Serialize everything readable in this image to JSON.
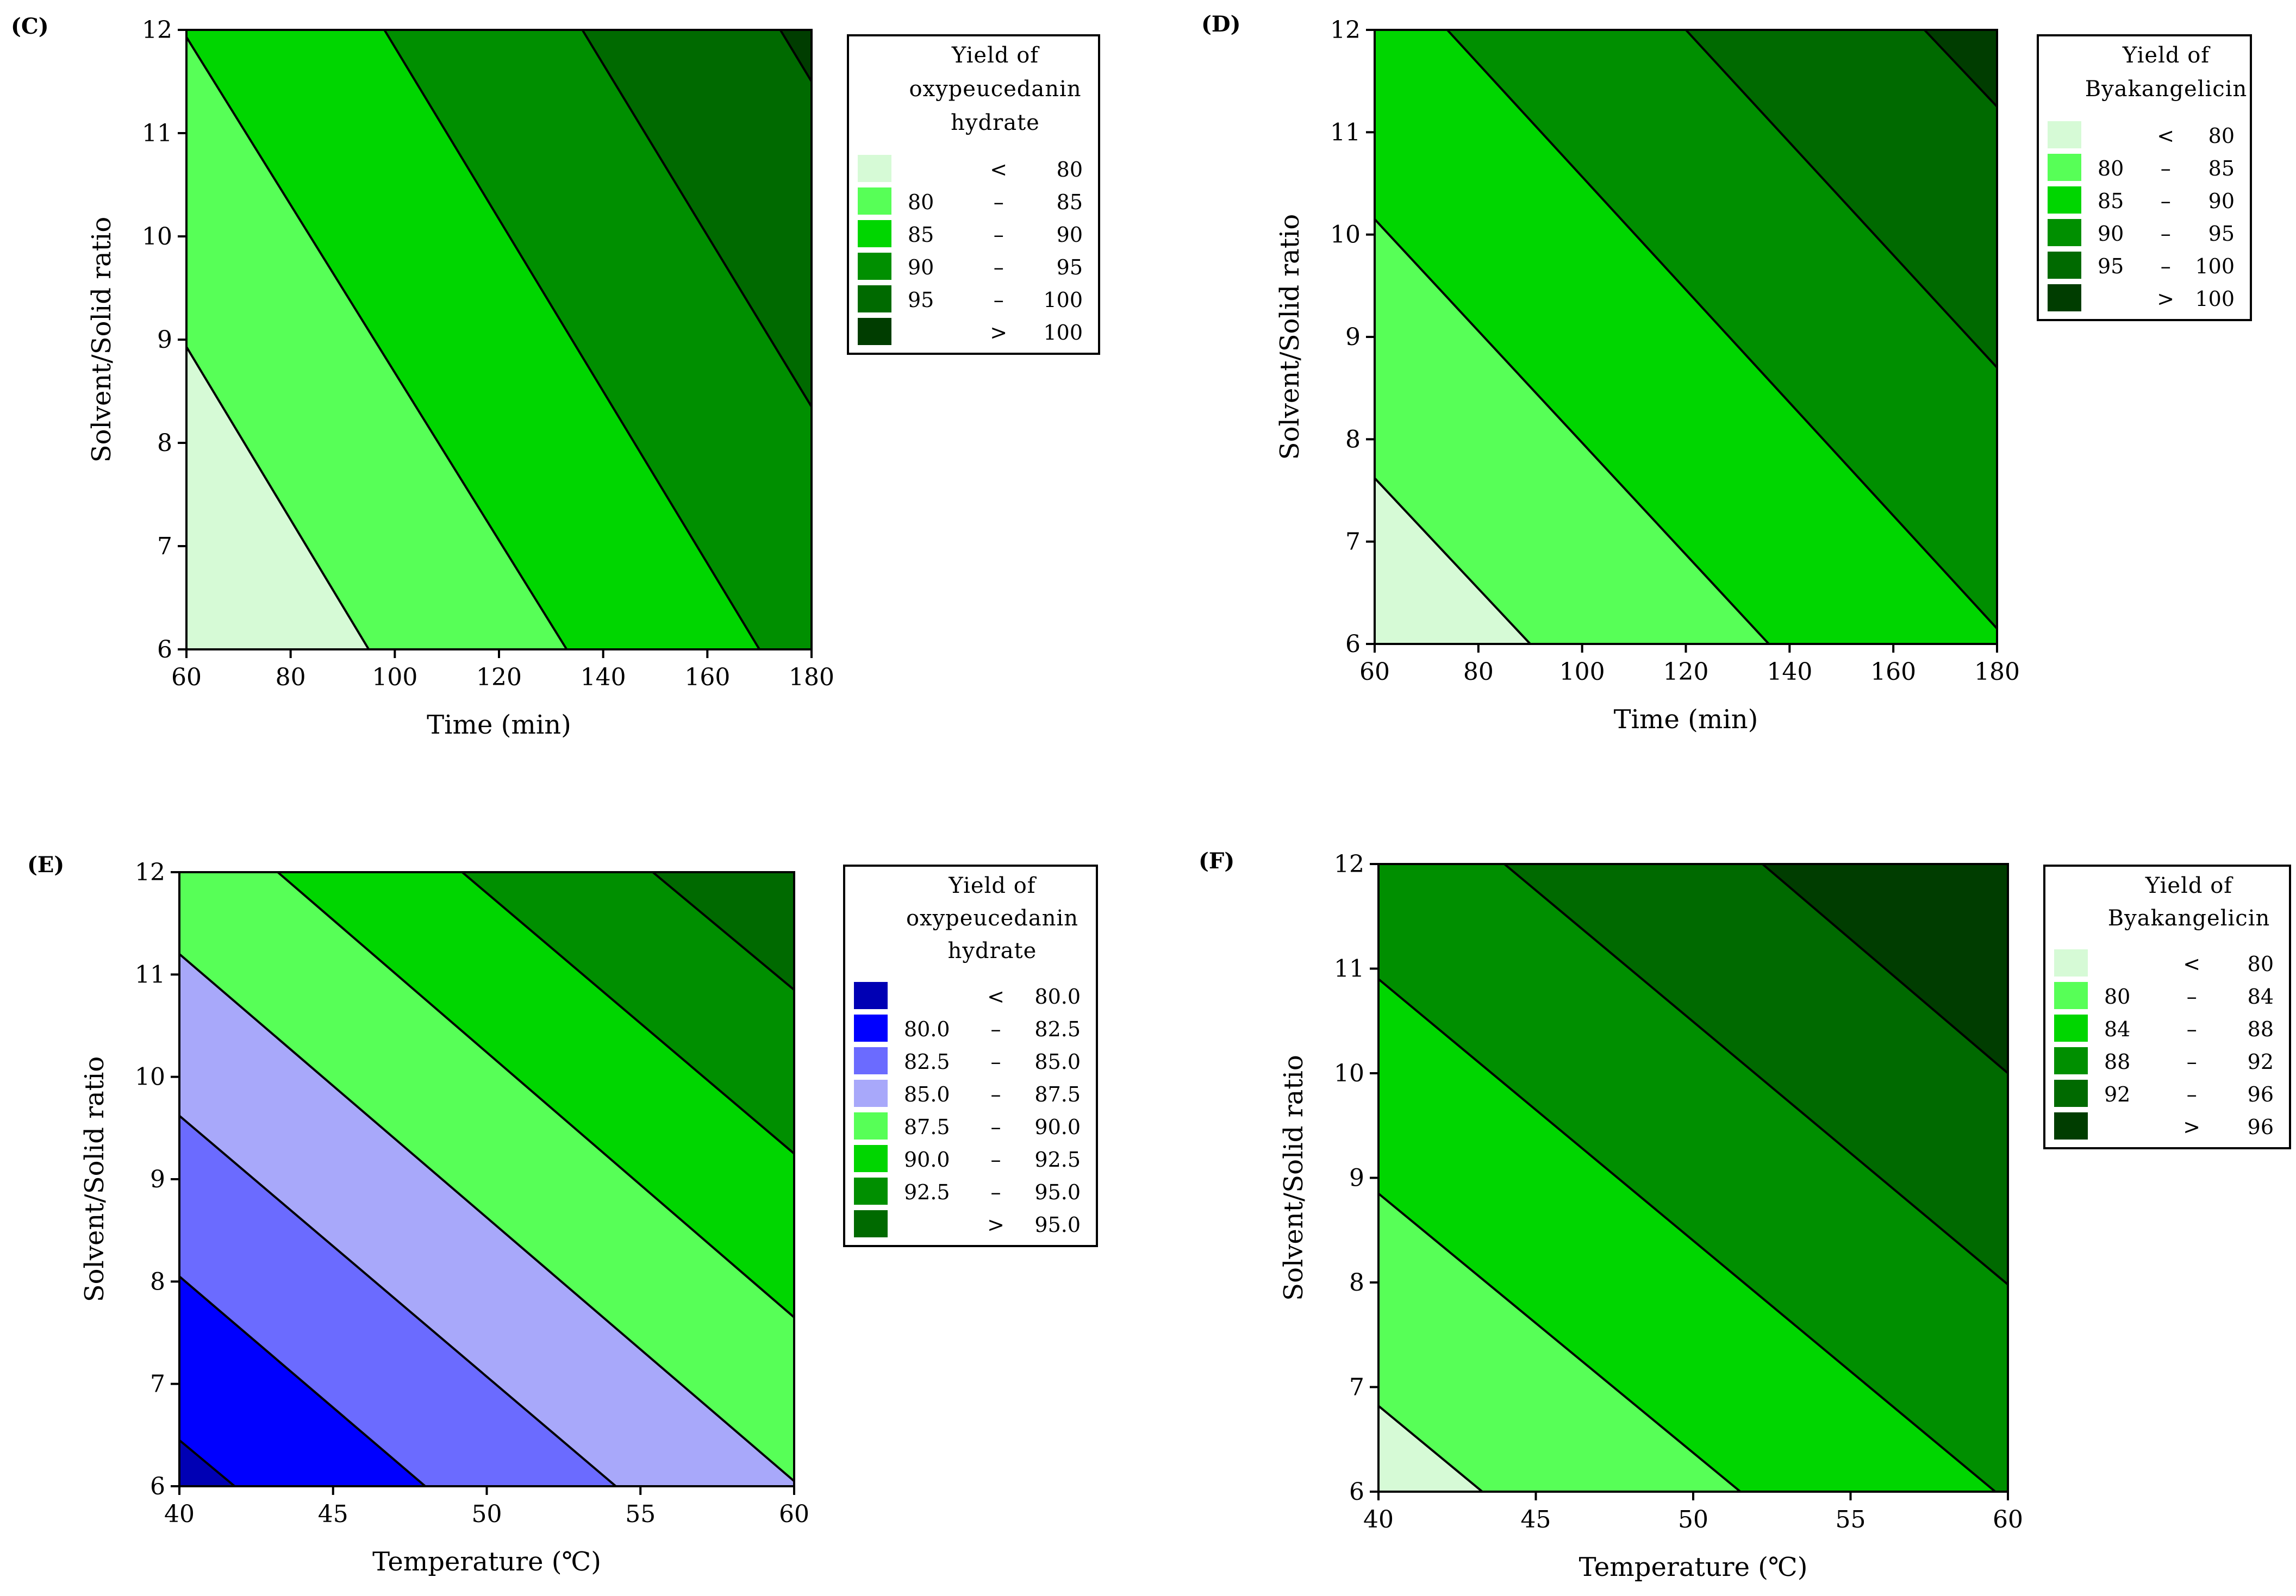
{
  "chart_data": [
    {
      "id": "C",
      "type": "contour",
      "panel_label": "(C)",
      "xlabel": "Time (min)",
      "ylabel": "Solvent/Solid ratio",
      "xlim": [
        60,
        180
      ],
      "ylim": [
        6,
        12
      ],
      "xticks": [
        "60",
        "80",
        "100",
        "120",
        "140",
        "160",
        "180"
      ],
      "yticks": [
        "6",
        "7",
        "8",
        "9",
        "10",
        "11",
        "12"
      ],
      "legend_title": [
        "Yield of",
        "oxypeucedanin",
        "hydrate"
      ],
      "legend": [
        {
          "lo": "",
          "sep": "<",
          "hi": "80",
          "color": "#d6fad6"
        },
        {
          "lo": "80",
          "sep": "–",
          "hi": "85",
          "color": "#57ff57"
        },
        {
          "lo": "85",
          "sep": "–",
          "hi": "90",
          "color": "#00d600"
        },
        {
          "lo": "90",
          "sep": "–",
          "hi": "95",
          "color": "#008f00"
        },
        {
          "lo": "95",
          "sep": "–",
          "hi": "100",
          "color": "#006a00"
        },
        {
          "lo": "",
          "sep": ">",
          "hi": "100",
          "color": "#003d00"
        }
      ],
      "contours": [
        {
          "level": 80,
          "p1": [
            60,
            8.93
          ],
          "p2": [
            95,
            6
          ]
        },
        {
          "level": 85,
          "p1": [
            60,
            11.93
          ],
          "p2": [
            133,
            6
          ]
        },
        {
          "level": 90,
          "p1": [
            98,
            12
          ],
          "p2": [
            170,
            6
          ]
        },
        {
          "level": 95,
          "p1": [
            136,
            12
          ],
          "p2": [
            180,
            8.35
          ]
        },
        {
          "level": 100,
          "p1": [
            174,
            12
          ],
          "p2": [
            180,
            11.5
          ]
        }
      ]
    },
    {
      "id": "D",
      "type": "contour",
      "panel_label": "(D)",
      "xlabel": "Time (min)",
      "ylabel": "Solvent/Solid ratio",
      "xlim": [
        60,
        180
      ],
      "ylim": [
        6,
        12
      ],
      "xticks": [
        "60",
        "80",
        "100",
        "120",
        "140",
        "160",
        "180"
      ],
      "yticks": [
        "6",
        "7",
        "8",
        "9",
        "10",
        "11",
        "12"
      ],
      "legend_title": [
        "Yield of",
        "Byakangelicin"
      ],
      "legend": [
        {
          "lo": "",
          "sep": "<",
          "hi": "80",
          "color": "#d6fad6"
        },
        {
          "lo": "80",
          "sep": "–",
          "hi": "85",
          "color": "#57ff57"
        },
        {
          "lo": "85",
          "sep": "–",
          "hi": "90",
          "color": "#00d600"
        },
        {
          "lo": "90",
          "sep": "–",
          "hi": "95",
          "color": "#008f00"
        },
        {
          "lo": "95",
          "sep": "–",
          "hi": "100",
          "color": "#006a00"
        },
        {
          "lo": "",
          "sep": ">",
          "hi": "100",
          "color": "#003d00"
        }
      ],
      "contours": [
        {
          "level": 80,
          "p1": [
            60,
            7.62
          ],
          "p2": [
            90,
            6
          ]
        },
        {
          "level": 85,
          "p1": [
            60,
            10.15
          ],
          "p2": [
            136,
            6
          ]
        },
        {
          "level": 90,
          "p1": [
            74,
            12
          ],
          "p2": [
            180,
            6.15
          ]
        },
        {
          "level": 95,
          "p1": [
            120,
            12
          ],
          "p2": [
            180,
            8.7
          ]
        },
        {
          "level": 100,
          "p1": [
            166,
            12
          ],
          "p2": [
            180,
            11.25
          ]
        }
      ]
    },
    {
      "id": "E",
      "type": "contour",
      "panel_label": "(E)",
      "xlabel": "Temperature (℃)",
      "ylabel": "Solvent/Solid ratio",
      "xlim": [
        40,
        60
      ],
      "ylim": [
        6,
        12
      ],
      "xticks": [
        "40",
        "45",
        "50",
        "55",
        "60"
      ],
      "yticks": [
        "6",
        "7",
        "8",
        "9",
        "10",
        "11",
        "12"
      ],
      "legend_title": [
        "Yield of",
        "oxypeucedanin",
        "hydrate"
      ],
      "legend": [
        {
          "lo": "",
          "sep": "<",
          "hi": "80.0",
          "color": "#0000b4"
        },
        {
          "lo": "80.0",
          "sep": "–",
          "hi": "82.5",
          "color": "#0000ff"
        },
        {
          "lo": "82.5",
          "sep": "–",
          "hi": "85.0",
          "color": "#6b6bff"
        },
        {
          "lo": "85.0",
          "sep": "–",
          "hi": "87.5",
          "color": "#a8a8fa"
        },
        {
          "lo": "87.5",
          "sep": "–",
          "hi": "90.0",
          "color": "#57ff57"
        },
        {
          "lo": "90.0",
          "sep": "–",
          "hi": "92.5",
          "color": "#00d600"
        },
        {
          "lo": "92.5",
          "sep": "–",
          "hi": "95.0",
          "color": "#008f00"
        },
        {
          "lo": "",
          "sep": ">",
          "hi": "95.0",
          "color": "#006a00"
        }
      ],
      "contours": [
        {
          "level": 80.0,
          "p1": [
            40,
            6.45
          ],
          "p2": [
            41.8,
            6
          ]
        },
        {
          "level": 82.5,
          "p1": [
            40,
            8.05
          ],
          "p2": [
            48,
            6
          ]
        },
        {
          "level": 85.0,
          "p1": [
            40,
            9.62
          ],
          "p2": [
            54.2,
            6
          ]
        },
        {
          "level": 87.5,
          "p1": [
            40,
            11.2
          ],
          "p2": [
            60,
            6.05
          ]
        },
        {
          "level": 90.0,
          "p1": [
            43.2,
            12
          ],
          "p2": [
            60,
            7.65
          ]
        },
        {
          "level": 92.5,
          "p1": [
            49.2,
            12
          ],
          "p2": [
            60,
            9.25
          ]
        },
        {
          "level": 95.0,
          "p1": [
            55.4,
            12
          ],
          "p2": [
            60,
            10.85
          ]
        }
      ]
    },
    {
      "id": "F",
      "type": "contour",
      "panel_label": "(F)",
      "xlabel": "Temperature (℃)",
      "ylabel": "Solvent/Solid ratio",
      "xlim": [
        40,
        60
      ],
      "ylim": [
        6,
        12
      ],
      "xticks": [
        "40",
        "45",
        "50",
        "55",
        "60"
      ],
      "yticks": [
        "6",
        "7",
        "8",
        "9",
        "10",
        "11",
        "12"
      ],
      "legend_title": [
        "Yield of",
        "Byakangelicin"
      ],
      "legend": [
        {
          "lo": "",
          "sep": "<",
          "hi": "80",
          "color": "#d6fad6"
        },
        {
          "lo": "80",
          "sep": "–",
          "hi": "84",
          "color": "#57ff57"
        },
        {
          "lo": "84",
          "sep": "–",
          "hi": "88",
          "color": "#00d600"
        },
        {
          "lo": "88",
          "sep": "–",
          "hi": "92",
          "color": "#008f00"
        },
        {
          "lo": "92",
          "sep": "–",
          "hi": "96",
          "color": "#006a00"
        },
        {
          "lo": "",
          "sep": ">",
          "hi": "96",
          "color": "#003d00"
        }
      ],
      "contours": [
        {
          "level": 80,
          "p1": [
            40,
            6.82
          ],
          "p2": [
            43.3,
            6
          ]
        },
        {
          "level": 84,
          "p1": [
            40,
            8.85
          ],
          "p2": [
            51.5,
            6
          ]
        },
        {
          "level": 88,
          "p1": [
            40,
            10.9
          ],
          "p2": [
            59.6,
            6
          ]
        },
        {
          "level": 92,
          "p1": [
            44,
            12
          ],
          "p2": [
            60,
            7.98
          ]
        },
        {
          "level": 96,
          "p1": [
            52.2,
            12
          ],
          "p2": [
            60,
            10
          ]
        }
      ]
    }
  ]
}
